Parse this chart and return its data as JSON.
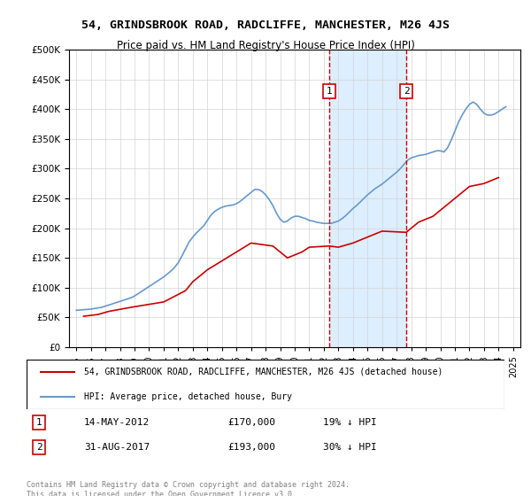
{
  "title": "54, GRINDSBROOK ROAD, RADCLIFFE, MANCHESTER, M26 4JS",
  "subtitle": "Price paid vs. HM Land Registry's House Price Index (HPI)",
  "legend_line1": "54, GRINDSBROOK ROAD, RADCLIFFE, MANCHESTER, M26 4JS (detached house)",
  "legend_line2": "HPI: Average price, detached house, Bury",
  "annotation1_label": "1",
  "annotation1_date": "14-MAY-2012",
  "annotation1_price": "£170,000",
  "annotation1_hpi": "19% ↓ HPI",
  "annotation1_year": 2012.37,
  "annotation2_label": "2",
  "annotation2_date": "31-AUG-2017",
  "annotation2_price": "£193,000",
  "annotation2_hpi": "30% ↓ HPI",
  "annotation2_year": 2017.66,
  "footer": "Contains HM Land Registry data © Crown copyright and database right 2024.\nThis data is licensed under the Open Government Licence v3.0.",
  "red_line_color": "#cc0000",
  "blue_line_color": "#6699cc",
  "shade_color": "#ddeeff",
  "dashed_color": "#cc0000",
  "ylim": [
    0,
    500000
  ],
  "yticks": [
    0,
    50000,
    100000,
    150000,
    200000,
    250000,
    300000,
    350000,
    400000,
    450000,
    500000
  ],
  "hpi_data": {
    "years": [
      1995.0,
      1995.25,
      1995.5,
      1995.75,
      1996.0,
      1996.25,
      1996.5,
      1996.75,
      1997.0,
      1997.25,
      1997.5,
      1997.75,
      1998.0,
      1998.25,
      1998.5,
      1998.75,
      1999.0,
      1999.25,
      1999.5,
      1999.75,
      2000.0,
      2000.25,
      2000.5,
      2000.75,
      2001.0,
      2001.25,
      2001.5,
      2001.75,
      2002.0,
      2002.25,
      2002.5,
      2002.75,
      2003.0,
      2003.25,
      2003.5,
      2003.75,
      2004.0,
      2004.25,
      2004.5,
      2004.75,
      2005.0,
      2005.25,
      2005.5,
      2005.75,
      2006.0,
      2006.25,
      2006.5,
      2006.75,
      2007.0,
      2007.25,
      2007.5,
      2007.75,
      2008.0,
      2008.25,
      2008.5,
      2008.75,
      2009.0,
      2009.25,
      2009.5,
      2009.75,
      2010.0,
      2010.25,
      2010.5,
      2010.75,
      2011.0,
      2011.25,
      2011.5,
      2011.75,
      2012.0,
      2012.25,
      2012.5,
      2012.75,
      2013.0,
      2013.25,
      2013.5,
      2013.75,
      2014.0,
      2014.25,
      2014.5,
      2014.75,
      2015.0,
      2015.25,
      2015.5,
      2015.75,
      2016.0,
      2016.25,
      2016.5,
      2016.75,
      2017.0,
      2017.25,
      2017.5,
      2017.75,
      2018.0,
      2018.25,
      2018.5,
      2018.75,
      2019.0,
      2019.25,
      2019.5,
      2019.75,
      2020.0,
      2020.25,
      2020.5,
      2020.75,
      2021.0,
      2021.25,
      2021.5,
      2021.75,
      2022.0,
      2022.25,
      2022.5,
      2022.75,
      2023.0,
      2023.25,
      2023.5,
      2023.75,
      2024.0,
      2024.25,
      2024.5
    ],
    "values": [
      62000,
      62500,
      63000,
      63500,
      64000,
      65000,
      66000,
      67000,
      69000,
      71000,
      73000,
      75000,
      77000,
      79000,
      81000,
      83000,
      86000,
      90000,
      94000,
      98000,
      102000,
      106000,
      110000,
      114000,
      118000,
      123000,
      128000,
      134000,
      142000,
      153000,
      165000,
      177000,
      185000,
      192000,
      198000,
      204000,
      213000,
      222000,
      228000,
      232000,
      235000,
      237000,
      238000,
      239000,
      241000,
      245000,
      250000,
      255000,
      260000,
      265000,
      265000,
      262000,
      256000,
      248000,
      238000,
      225000,
      215000,
      210000,
      212000,
      217000,
      220000,
      220000,
      218000,
      216000,
      213000,
      212000,
      210000,
      209000,
      208000,
      208000,
      208000,
      210000,
      212000,
      216000,
      221000,
      227000,
      233000,
      238000,
      244000,
      250000,
      256000,
      261000,
      266000,
      270000,
      274000,
      279000,
      284000,
      289000,
      294000,
      300000,
      307000,
      314000,
      318000,
      320000,
      322000,
      323000,
      324000,
      326000,
      328000,
      330000,
      330000,
      328000,
      335000,
      348000,
      363000,
      378000,
      390000,
      400000,
      408000,
      412000,
      408000,
      400000,
      393000,
      390000,
      390000,
      392000,
      396000,
      400000,
      404000
    ]
  },
  "price_data": {
    "years": [
      1995.5,
      1996.5,
      1997.2,
      1998.3,
      1999.0,
      2000.0,
      2001.0,
      2002.5,
      2003.0,
      2004.0,
      2005.0,
      2006.0,
      2007.0,
      2008.5,
      2009.5,
      2010.5,
      2011.0,
      2012.37,
      2013.0,
      2014.0,
      2015.0,
      2016.0,
      2017.66,
      2018.5,
      2019.5,
      2020.5,
      2021.5,
      2022.0,
      2023.0,
      2024.0
    ],
    "values": [
      52000,
      55000,
      60000,
      65000,
      68000,
      72000,
      76000,
      95000,
      110000,
      130000,
      145000,
      160000,
      175000,
      170000,
      150000,
      160000,
      168000,
      170000,
      168000,
      175000,
      185000,
      195000,
      193000,
      210000,
      220000,
      240000,
      260000,
      270000,
      275000,
      285000
    ]
  }
}
